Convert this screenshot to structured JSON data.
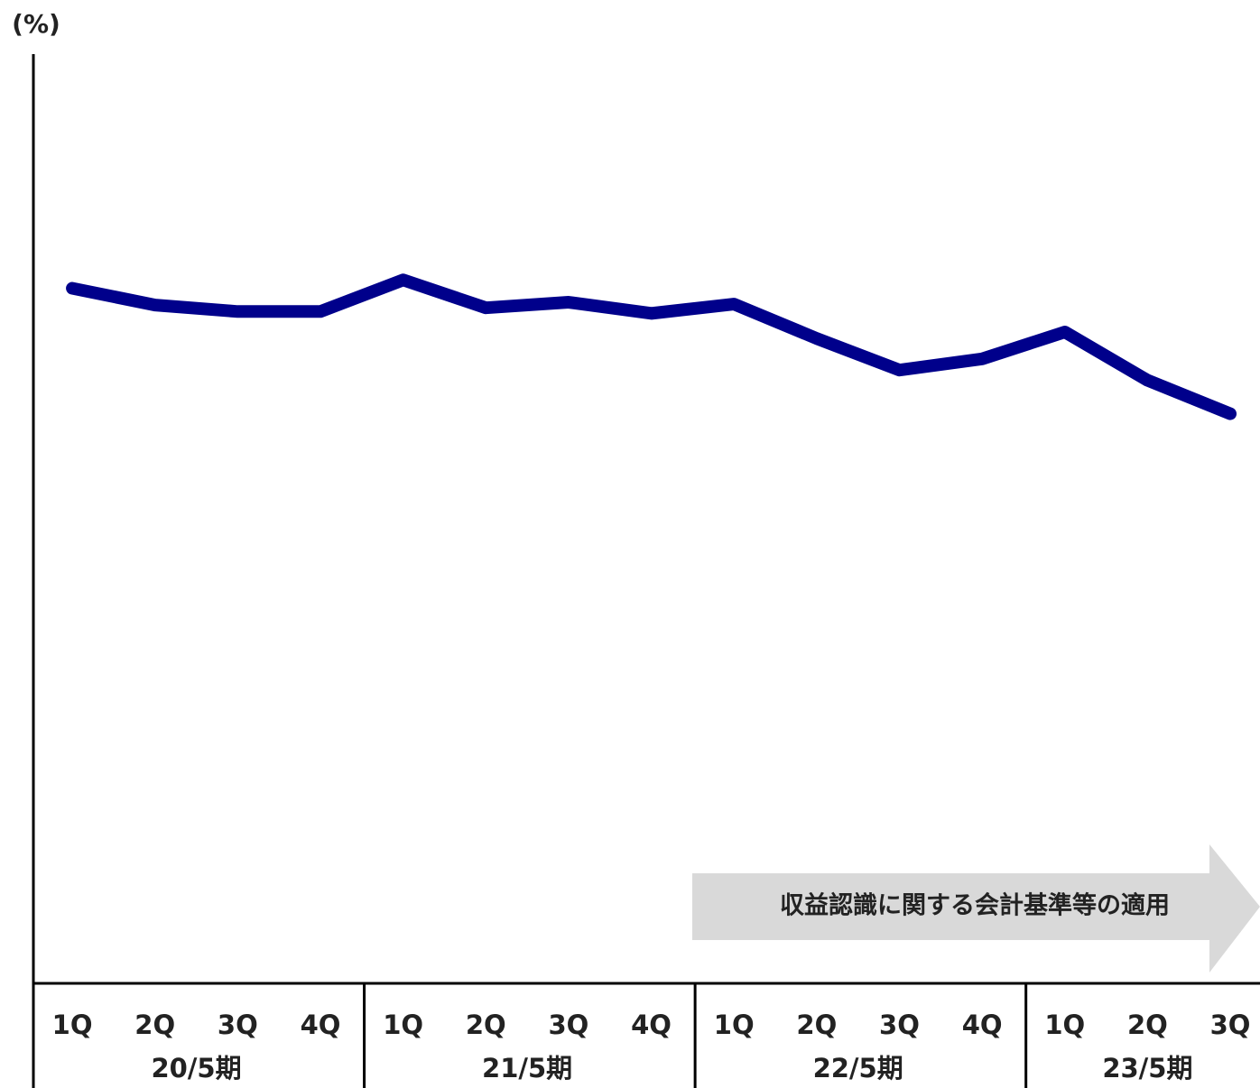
{
  "chart_data": {
    "type": "line",
    "y_unit": "(%)",
    "annotation": "収益認識に関する会計基準等の適用",
    "groups": [
      {
        "name": "20/5期",
        "categories": [
          "1Q",
          "2Q",
          "3Q",
          "4Q"
        ]
      },
      {
        "name": "21/5期",
        "categories": [
          "1Q",
          "2Q",
          "3Q",
          "4Q"
        ]
      },
      {
        "name": "22/5期",
        "categories": [
          "1Q",
          "2Q",
          "3Q",
          "4Q"
        ]
      },
      {
        "name": "23/5期",
        "categories": [
          "1Q",
          "2Q",
          "3Q"
        ]
      }
    ],
    "series": [
      {
        "color": "#00008b",
        "values": [
          74.8,
          73.0,
          72.3,
          72.3,
          75.7,
          72.7,
          73.3,
          72.1,
          73.1,
          69.4,
          66.0,
          67.2,
          70.1,
          64.9,
          61.3
        ]
      }
    ],
    "ylim": [
      0,
      100
    ]
  }
}
